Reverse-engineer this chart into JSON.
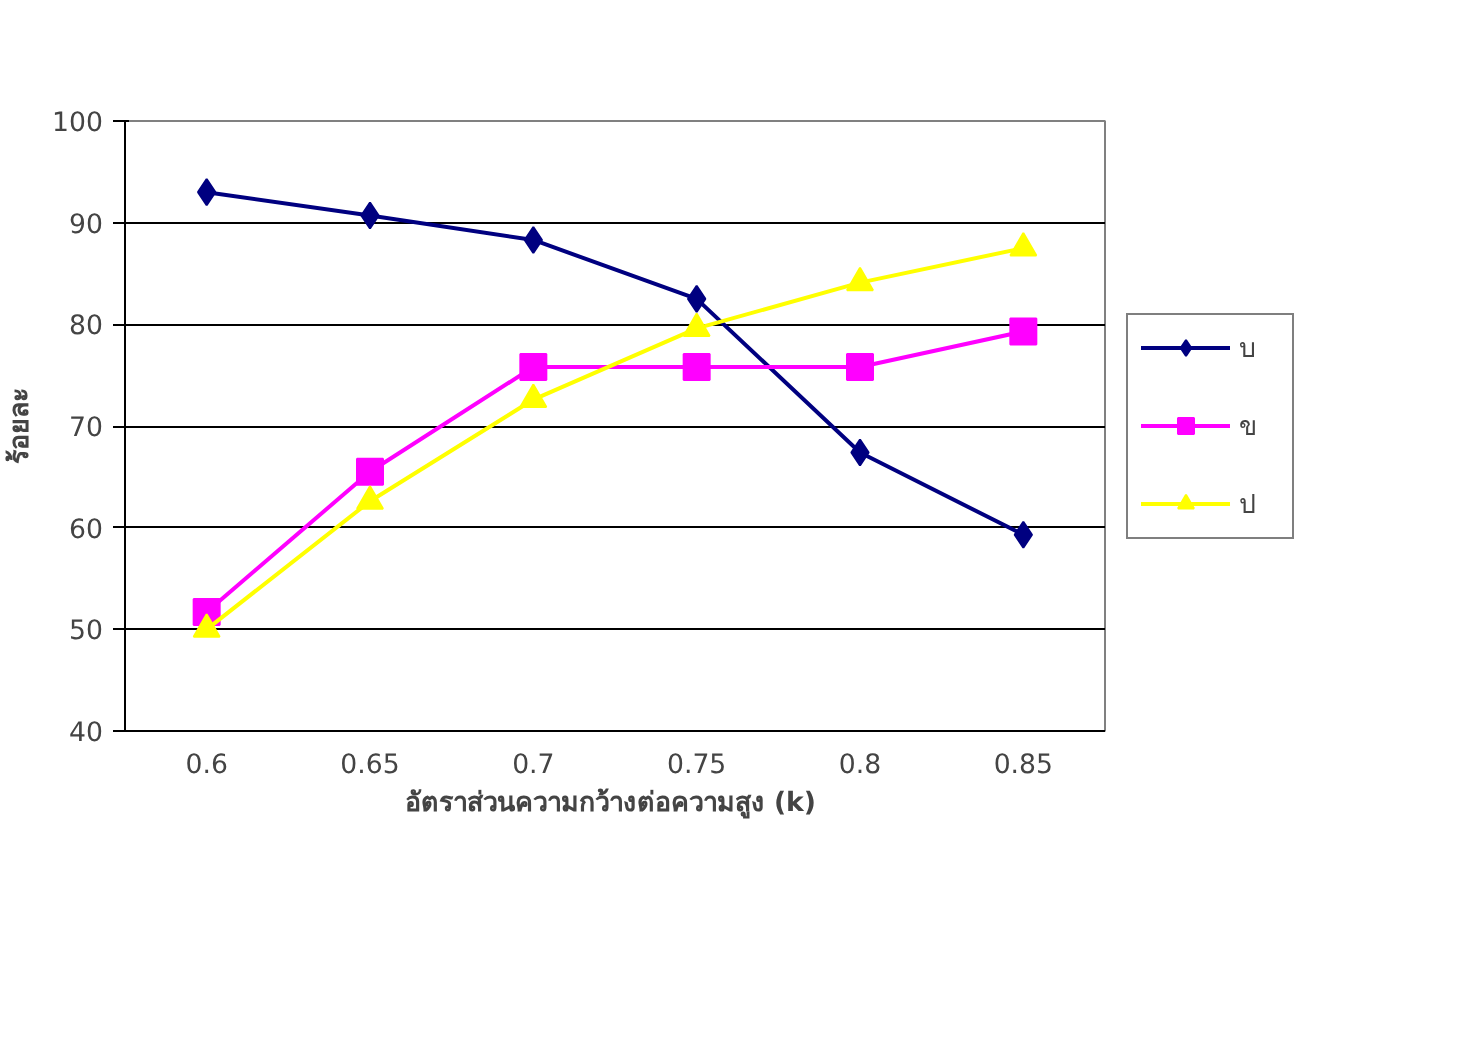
{
  "chart_data": {
    "type": "line",
    "xlabel": "อัตราส่วนความกว้างต่อความสูง  (k)",
    "ylabel": "ร้อยละ",
    "categories": [
      "0.6",
      "0.65",
      "0.7",
      "0.75",
      "0.8",
      "0.85"
    ],
    "series": [
      {
        "name": "บ",
        "color": "#000080",
        "marker": "diamond",
        "values": [
          93,
          90.7,
          88.3,
          82.5,
          67.4,
          59.3
        ]
      },
      {
        "name": "ข",
        "color": "#ff00ff",
        "marker": "square",
        "values": [
          51.7,
          65.5,
          75.8,
          75.8,
          75.8,
          79.3
        ]
      },
      {
        "name": "ป",
        "color": "#ffff00",
        "marker": "triangle",
        "values": [
          50,
          62.6,
          72.6,
          79.6,
          84.1,
          87.5
        ]
      }
    ],
    "ylim": [
      40,
      100
    ],
    "yticks": [
      40,
      50,
      60,
      70,
      80,
      90,
      100
    ],
    "grid": "y",
    "legend": "right",
    "line_style": "solid"
  }
}
